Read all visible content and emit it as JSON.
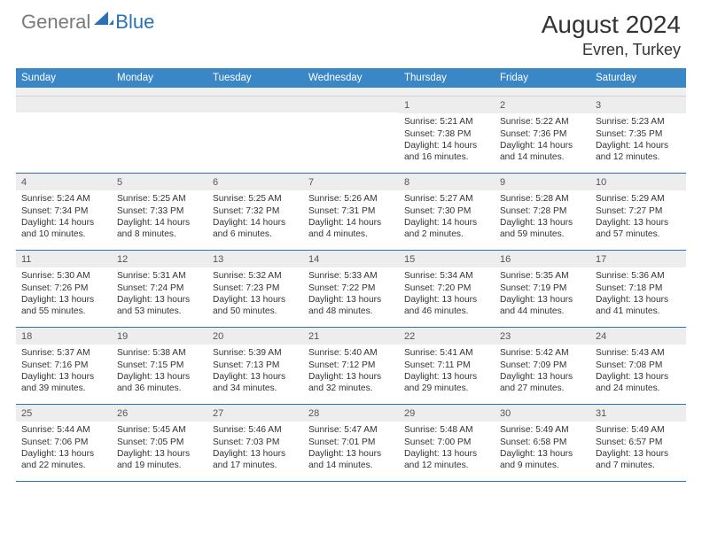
{
  "logo": {
    "part1": "General",
    "part2": "Blue"
  },
  "title": {
    "month": "August 2024",
    "location": "Evren, Turkey"
  },
  "weekdays": [
    "Sunday",
    "Monday",
    "Tuesday",
    "Wednesday",
    "Thursday",
    "Friday",
    "Saturday"
  ],
  "colors": {
    "header_blue": "#3a87c8",
    "rule_blue": "#2a72b5",
    "daynum_bg": "#ededed",
    "logo_gray": "#7a7a7a",
    "logo_blue": "#2a72b5"
  },
  "weeks": [
    [
      {
        "n": "",
        "sr": "",
        "ss": "",
        "dl1": "",
        "dl2": "",
        "empty": true
      },
      {
        "n": "",
        "sr": "",
        "ss": "",
        "dl1": "",
        "dl2": "",
        "empty": true
      },
      {
        "n": "",
        "sr": "",
        "ss": "",
        "dl1": "",
        "dl2": "",
        "empty": true
      },
      {
        "n": "",
        "sr": "",
        "ss": "",
        "dl1": "",
        "dl2": "",
        "empty": true
      },
      {
        "n": "1",
        "sr": "Sunrise: 5:21 AM",
        "ss": "Sunset: 7:38 PM",
        "dl1": "Daylight: 14 hours",
        "dl2": "and 16 minutes."
      },
      {
        "n": "2",
        "sr": "Sunrise: 5:22 AM",
        "ss": "Sunset: 7:36 PM",
        "dl1": "Daylight: 14 hours",
        "dl2": "and 14 minutes."
      },
      {
        "n": "3",
        "sr": "Sunrise: 5:23 AM",
        "ss": "Sunset: 7:35 PM",
        "dl1": "Daylight: 14 hours",
        "dl2": "and 12 minutes."
      }
    ],
    [
      {
        "n": "4",
        "sr": "Sunrise: 5:24 AM",
        "ss": "Sunset: 7:34 PM",
        "dl1": "Daylight: 14 hours",
        "dl2": "and 10 minutes."
      },
      {
        "n": "5",
        "sr": "Sunrise: 5:25 AM",
        "ss": "Sunset: 7:33 PM",
        "dl1": "Daylight: 14 hours",
        "dl2": "and 8 minutes."
      },
      {
        "n": "6",
        "sr": "Sunrise: 5:25 AM",
        "ss": "Sunset: 7:32 PM",
        "dl1": "Daylight: 14 hours",
        "dl2": "and 6 minutes."
      },
      {
        "n": "7",
        "sr": "Sunrise: 5:26 AM",
        "ss": "Sunset: 7:31 PM",
        "dl1": "Daylight: 14 hours",
        "dl2": "and 4 minutes."
      },
      {
        "n": "8",
        "sr": "Sunrise: 5:27 AM",
        "ss": "Sunset: 7:30 PM",
        "dl1": "Daylight: 14 hours",
        "dl2": "and 2 minutes."
      },
      {
        "n": "9",
        "sr": "Sunrise: 5:28 AM",
        "ss": "Sunset: 7:28 PM",
        "dl1": "Daylight: 13 hours",
        "dl2": "and 59 minutes."
      },
      {
        "n": "10",
        "sr": "Sunrise: 5:29 AM",
        "ss": "Sunset: 7:27 PM",
        "dl1": "Daylight: 13 hours",
        "dl2": "and 57 minutes."
      }
    ],
    [
      {
        "n": "11",
        "sr": "Sunrise: 5:30 AM",
        "ss": "Sunset: 7:26 PM",
        "dl1": "Daylight: 13 hours",
        "dl2": "and 55 minutes."
      },
      {
        "n": "12",
        "sr": "Sunrise: 5:31 AM",
        "ss": "Sunset: 7:24 PM",
        "dl1": "Daylight: 13 hours",
        "dl2": "and 53 minutes."
      },
      {
        "n": "13",
        "sr": "Sunrise: 5:32 AM",
        "ss": "Sunset: 7:23 PM",
        "dl1": "Daylight: 13 hours",
        "dl2": "and 50 minutes."
      },
      {
        "n": "14",
        "sr": "Sunrise: 5:33 AM",
        "ss": "Sunset: 7:22 PM",
        "dl1": "Daylight: 13 hours",
        "dl2": "and 48 minutes."
      },
      {
        "n": "15",
        "sr": "Sunrise: 5:34 AM",
        "ss": "Sunset: 7:20 PM",
        "dl1": "Daylight: 13 hours",
        "dl2": "and 46 minutes."
      },
      {
        "n": "16",
        "sr": "Sunrise: 5:35 AM",
        "ss": "Sunset: 7:19 PM",
        "dl1": "Daylight: 13 hours",
        "dl2": "and 44 minutes."
      },
      {
        "n": "17",
        "sr": "Sunrise: 5:36 AM",
        "ss": "Sunset: 7:18 PM",
        "dl1": "Daylight: 13 hours",
        "dl2": "and 41 minutes."
      }
    ],
    [
      {
        "n": "18",
        "sr": "Sunrise: 5:37 AM",
        "ss": "Sunset: 7:16 PM",
        "dl1": "Daylight: 13 hours",
        "dl2": "and 39 minutes."
      },
      {
        "n": "19",
        "sr": "Sunrise: 5:38 AM",
        "ss": "Sunset: 7:15 PM",
        "dl1": "Daylight: 13 hours",
        "dl2": "and 36 minutes."
      },
      {
        "n": "20",
        "sr": "Sunrise: 5:39 AM",
        "ss": "Sunset: 7:13 PM",
        "dl1": "Daylight: 13 hours",
        "dl2": "and 34 minutes."
      },
      {
        "n": "21",
        "sr": "Sunrise: 5:40 AM",
        "ss": "Sunset: 7:12 PM",
        "dl1": "Daylight: 13 hours",
        "dl2": "and 32 minutes."
      },
      {
        "n": "22",
        "sr": "Sunrise: 5:41 AM",
        "ss": "Sunset: 7:11 PM",
        "dl1": "Daylight: 13 hours",
        "dl2": "and 29 minutes."
      },
      {
        "n": "23",
        "sr": "Sunrise: 5:42 AM",
        "ss": "Sunset: 7:09 PM",
        "dl1": "Daylight: 13 hours",
        "dl2": "and 27 minutes."
      },
      {
        "n": "24",
        "sr": "Sunrise: 5:43 AM",
        "ss": "Sunset: 7:08 PM",
        "dl1": "Daylight: 13 hours",
        "dl2": "and 24 minutes."
      }
    ],
    [
      {
        "n": "25",
        "sr": "Sunrise: 5:44 AM",
        "ss": "Sunset: 7:06 PM",
        "dl1": "Daylight: 13 hours",
        "dl2": "and 22 minutes."
      },
      {
        "n": "26",
        "sr": "Sunrise: 5:45 AM",
        "ss": "Sunset: 7:05 PM",
        "dl1": "Daylight: 13 hours",
        "dl2": "and 19 minutes."
      },
      {
        "n": "27",
        "sr": "Sunrise: 5:46 AM",
        "ss": "Sunset: 7:03 PM",
        "dl1": "Daylight: 13 hours",
        "dl2": "and 17 minutes."
      },
      {
        "n": "28",
        "sr": "Sunrise: 5:47 AM",
        "ss": "Sunset: 7:01 PM",
        "dl1": "Daylight: 13 hours",
        "dl2": "and 14 minutes."
      },
      {
        "n": "29",
        "sr": "Sunrise: 5:48 AM",
        "ss": "Sunset: 7:00 PM",
        "dl1": "Daylight: 13 hours",
        "dl2": "and 12 minutes."
      },
      {
        "n": "30",
        "sr": "Sunrise: 5:49 AM",
        "ss": "Sunset: 6:58 PM",
        "dl1": "Daylight: 13 hours",
        "dl2": "and 9 minutes."
      },
      {
        "n": "31",
        "sr": "Sunrise: 5:49 AM",
        "ss": "Sunset: 6:57 PM",
        "dl1": "Daylight: 13 hours",
        "dl2": "and 7 minutes."
      }
    ]
  ]
}
